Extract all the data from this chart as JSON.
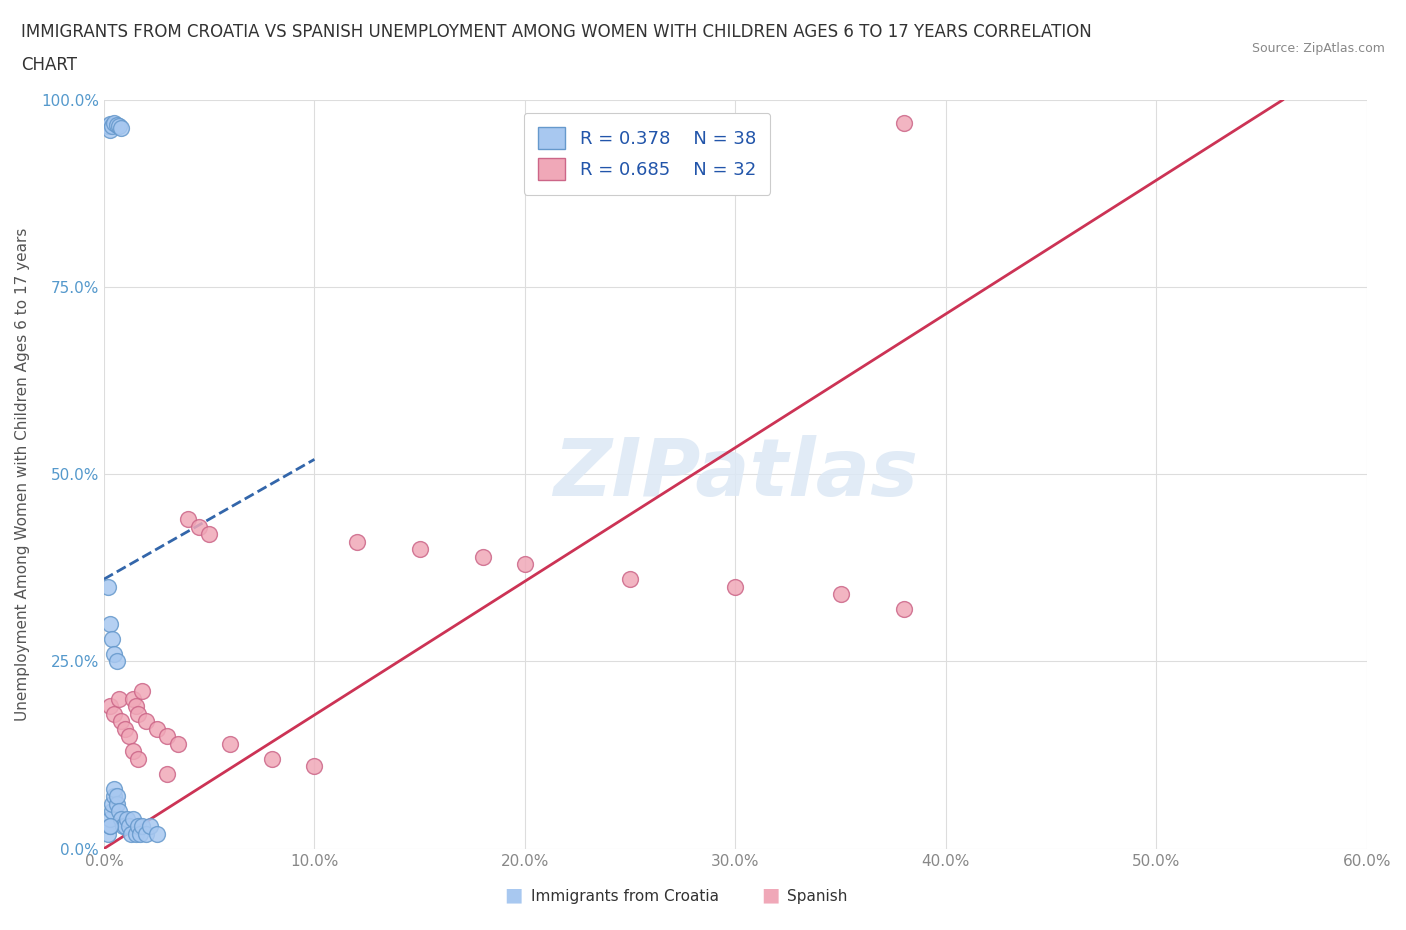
{
  "title_line1": "IMMIGRANTS FROM CROATIA VS SPANISH UNEMPLOYMENT AMONG WOMEN WITH CHILDREN AGES 6 TO 17 YEARS CORRELATION",
  "title_line2": "CHART",
  "source": "Source: ZipAtlas.com",
  "ylabel": "Unemployment Among Women with Children Ages 6 to 17 years",
  "xlim": [
    0.0,
    0.6
  ],
  "ylim": [
    0.0,
    1.0
  ],
  "xticks": [
    0.0,
    0.1,
    0.2,
    0.3,
    0.4,
    0.5,
    0.6
  ],
  "xticklabels": [
    "0.0%",
    "10.0%",
    "20.0%",
    "30.0%",
    "40.0%",
    "50.0%",
    "60.0%"
  ],
  "yticks": [
    0.0,
    0.25,
    0.5,
    0.75,
    1.0
  ],
  "yticklabels": [
    "0.0%",
    "25.0%",
    "50.0%",
    "75.0%",
    "100.0%"
  ],
  "blue_R": 0.378,
  "blue_N": 38,
  "pink_R": 0.685,
  "pink_N": 32,
  "blue_color": "#a8c8f0",
  "pink_color": "#f0a8b8",
  "blue_edge": "#6699cc",
  "pink_edge": "#cc6688",
  "blue_line_color": "#3366aa",
  "pink_line_color": "#cc3355",
  "blue_scatter_x": [
    0.002,
    0.003,
    0.003,
    0.004,
    0.005,
    0.006,
    0.007,
    0.008,
    0.002,
    0.003,
    0.004,
    0.005,
    0.006,
    0.002,
    0.003,
    0.003,
    0.004,
    0.004,
    0.005,
    0.005,
    0.006,
    0.006,
    0.007,
    0.008,
    0.009,
    0.01,
    0.011,
    0.012,
    0.013,
    0.014,
    0.015,
    0.016,
    0.017,
    0.018,
    0.02,
    0.022,
    0.025,
    0.003
  ],
  "blue_scatter_y": [
    0.965,
    0.968,
    0.96,
    0.965,
    0.97,
    0.967,
    0.965,
    0.962,
    0.35,
    0.3,
    0.28,
    0.26,
    0.25,
    0.02,
    0.03,
    0.04,
    0.05,
    0.06,
    0.07,
    0.08,
    0.06,
    0.07,
    0.05,
    0.04,
    0.03,
    0.03,
    0.04,
    0.03,
    0.02,
    0.04,
    0.02,
    0.03,
    0.02,
    0.03,
    0.02,
    0.03,
    0.02,
    0.03
  ],
  "pink_scatter_x": [
    0.003,
    0.005,
    0.007,
    0.008,
    0.01,
    0.012,
    0.014,
    0.015,
    0.016,
    0.018,
    0.02,
    0.025,
    0.03,
    0.035,
    0.04,
    0.045,
    0.05,
    0.06,
    0.08,
    0.1,
    0.12,
    0.15,
    0.18,
    0.2,
    0.25,
    0.3,
    0.35,
    0.38,
    0.014,
    0.016,
    0.03,
    0.38
  ],
  "pink_scatter_y": [
    0.19,
    0.18,
    0.2,
    0.17,
    0.16,
    0.15,
    0.2,
    0.19,
    0.18,
    0.21,
    0.17,
    0.16,
    0.15,
    0.14,
    0.44,
    0.43,
    0.42,
    0.14,
    0.12,
    0.11,
    0.41,
    0.4,
    0.39,
    0.38,
    0.36,
    0.35,
    0.34,
    0.32,
    0.13,
    0.12,
    0.1,
    0.97
  ],
  "blue_trend_x": [
    0.0,
    0.1
  ],
  "blue_trend_y": [
    0.36,
    0.52
  ],
  "pink_trend_x": [
    0.0,
    0.56
  ],
  "pink_trend_y": [
    0.0,
    1.0
  ]
}
